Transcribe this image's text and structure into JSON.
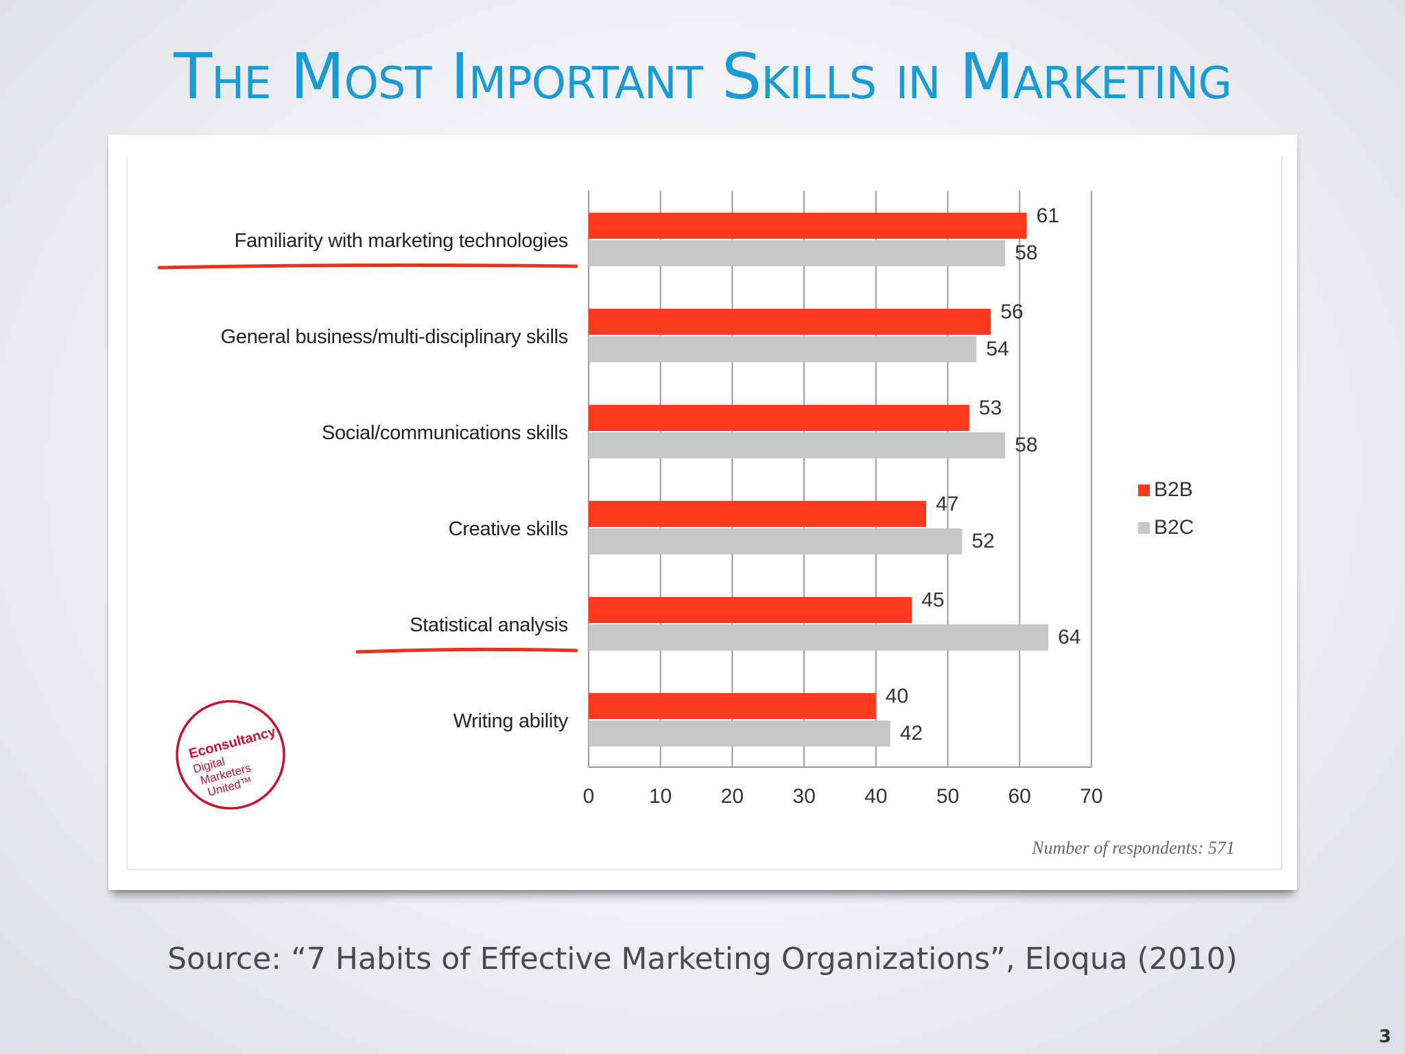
{
  "slide": {
    "title": "The Most Important Skills in Marketing",
    "source": "Source: “7 Habits of Effective Marketing Organizations”, Eloqua (2010)",
    "page_number": "3"
  },
  "chart_data": {
    "type": "bar",
    "orientation": "horizontal",
    "categories": [
      "Familiarity with marketing technologies",
      "General business/multi-disciplinary skills",
      "Social/communications skills",
      "Creative skills",
      "Statistical analysis",
      "Writing ability"
    ],
    "underlined_categories": [
      0,
      4
    ],
    "series": [
      {
        "name": "B2B",
        "values": [
          61,
          56,
          53,
          47,
          45,
          40
        ],
        "color": "#ff3a1e"
      },
      {
        "name": "B2C",
        "values": [
          58,
          54,
          58,
          52,
          64,
          42
        ],
        "color": "#c8c8c8"
      }
    ],
    "xlim": [
      0,
      70
    ],
    "xticks": [
      0,
      10,
      20,
      30,
      40,
      50,
      60,
      70
    ],
    "grid": true,
    "legend_position": "right",
    "note": "Number of respondents: 571",
    "underline_color": "#e8321c"
  },
  "logo": {
    "name": "Econsultancy Digital Marketers United",
    "brand": "Econsultancy",
    "lines": [
      "Digital",
      "Marketers",
      "United™"
    ],
    "color": "#c8102e"
  }
}
